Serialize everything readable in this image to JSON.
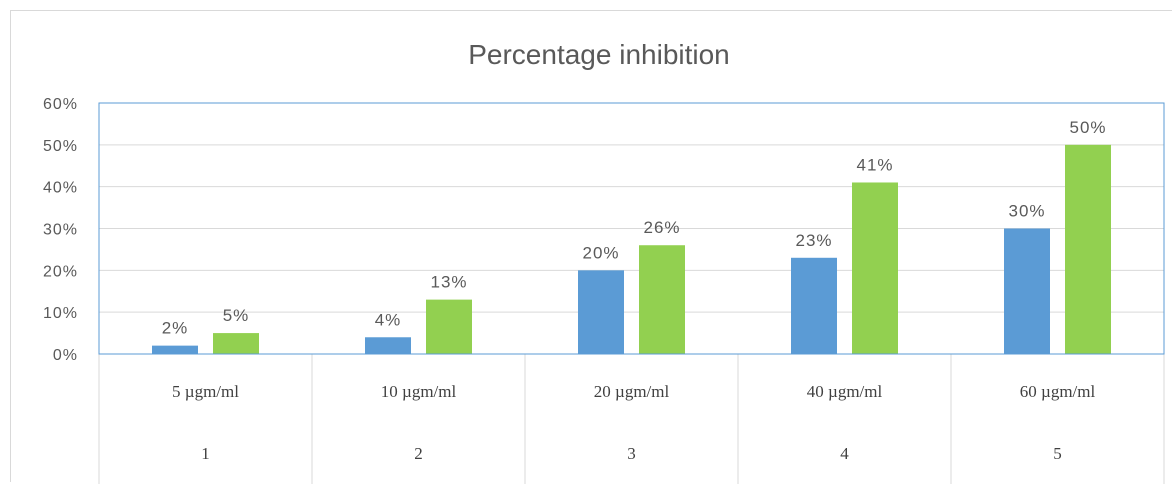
{
  "chart_data": {
    "type": "bar",
    "title": "Percentage inhibition",
    "categories": [
      "5 µgm/ml",
      "10 µgm/ml",
      "20 µgm/ml",
      "40 µgm/ml",
      "60 µgm/ml"
    ],
    "category_index": [
      "1",
      "2",
      "3",
      "4",
      "5"
    ],
    "series": [
      {
        "values": [
          2,
          4,
          20,
          23,
          30
        ],
        "labels": [
          "2%",
          "4%",
          "20%",
          "23%",
          "30%"
        ],
        "color": "#5b9bd5"
      },
      {
        "values": [
          5,
          13,
          26,
          41,
          50
        ],
        "labels": [
          "5%",
          "13%",
          "26%",
          "41%",
          "50%"
        ],
        "color": "#92d050"
      }
    ],
    "ylim": [
      0,
      60
    ],
    "yticks": [
      {
        "value": 0,
        "label": "0%"
      },
      {
        "value": 10,
        "label": "10%"
      },
      {
        "value": 20,
        "label": "20%"
      },
      {
        "value": 30,
        "label": "30%"
      },
      {
        "value": 40,
        "label": "40%"
      },
      {
        "value": 50,
        "label": "50%"
      },
      {
        "value": 60,
        "label": "60%"
      }
    ],
    "grid": true,
    "legend": "none",
    "plot_border_color": "#5b9bd5",
    "grid_color": "#d9d9d9"
  }
}
